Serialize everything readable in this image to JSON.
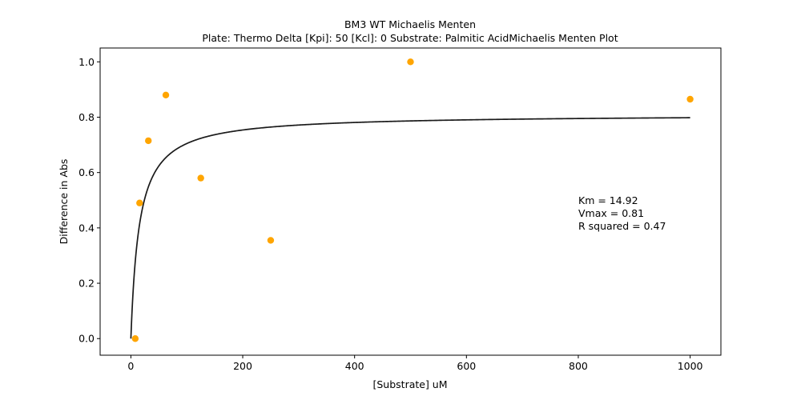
{
  "chart_data": {
    "type": "scatter",
    "title_line1": "BM3 WT Michaelis Menten",
    "title_line2": "Plate: Thermo Delta  [Kpi]: 50  [Kcl]: 0  Substrate: Palmitic AcidMichaelis Menten Plot",
    "xlabel": "[Substrate] uM",
    "ylabel": "Difference in Abs",
    "xlim": [
      -55,
      1055
    ],
    "ylim": [
      -0.06,
      1.05
    ],
    "xticks": [
      0,
      200,
      400,
      600,
      800,
      1000
    ],
    "yticks": [
      0.0,
      0.2,
      0.4,
      0.6,
      0.8,
      1.0
    ],
    "xtick_labels": [
      "0",
      "200",
      "400",
      "600",
      "800",
      "1000"
    ],
    "ytick_labels": [
      "0.0",
      "0.2",
      "0.4",
      "0.6",
      "0.8",
      "1.0"
    ],
    "points": [
      {
        "x": 7.8,
        "y": 0.0
      },
      {
        "x": 15.6,
        "y": 0.49
      },
      {
        "x": 31.25,
        "y": 0.715
      },
      {
        "x": 62.5,
        "y": 0.88
      },
      {
        "x": 125,
        "y": 0.58
      },
      {
        "x": 250,
        "y": 0.355
      },
      {
        "x": 500,
        "y": 1.0
      },
      {
        "x": 1000,
        "y": 0.865
      }
    ],
    "fit": {
      "km": 14.92,
      "vmax": 0.81,
      "x_start": 0,
      "x_end": 1000
    },
    "annotation": [
      "Km = 14.92",
      "Vmax = 0.81",
      "R squared = 0.47"
    ],
    "grid": false,
    "point_color": "#ffa500",
    "line_color": "#1a1a1a"
  }
}
